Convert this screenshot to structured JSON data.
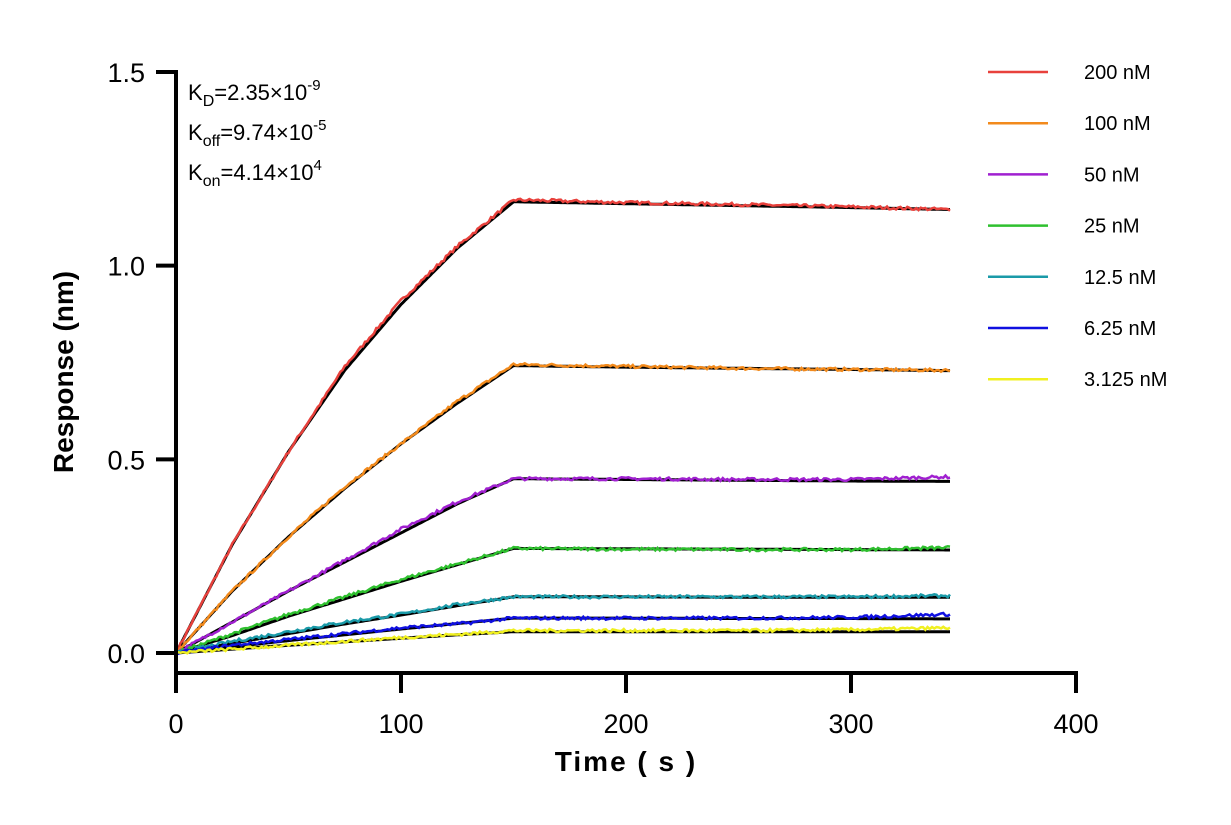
{
  "chart_data": {
    "type": "line",
    "xlabel": "Time ( s )",
    "ylabel": "Response (nm)",
    "xlim": [
      0,
      400
    ],
    "ylim": [
      0,
      1.5
    ],
    "xticks": [
      "0",
      "100",
      "200",
      "300",
      "400"
    ],
    "yticks": [
      "0.0",
      "0.5",
      "1.0",
      "1.5"
    ],
    "grid": false,
    "legend_position": "right",
    "annotations": {
      "kd": {
        "base": "K",
        "sub": "D",
        "value": "=2.35×10",
        "exp": "-9"
      },
      "koff": {
        "base": "K",
        "sub": "off",
        "value": "=9.74×10",
        "exp": "-5"
      },
      "kon": {
        "base": "K",
        "sub": "on",
        "value": "=4.14×10",
        "exp": "4"
      }
    },
    "fit_color": "#000000",
    "x": [
      0,
      25,
      50,
      75,
      100,
      125,
      150,
      200,
      250,
      300,
      344
    ],
    "series": [
      {
        "name": "200 nM",
        "color": "#e8413c",
        "values": [
          0,
          0.28,
          0.52,
          0.74,
          0.91,
          1.05,
          1.17,
          1.163,
          1.158,
          1.152,
          1.145
        ],
        "fit": [
          0,
          0.28,
          0.52,
          0.73,
          0.9,
          1.045,
          1.165,
          1.16,
          1.155,
          1.15,
          1.145
        ]
      },
      {
        "name": "100 nM",
        "color": "#f28a1c",
        "values": [
          0,
          0.16,
          0.3,
          0.43,
          0.54,
          0.65,
          0.745,
          0.74,
          0.735,
          0.732,
          0.73
        ],
        "fit": [
          0,
          0.16,
          0.3,
          0.425,
          0.54,
          0.645,
          0.742,
          0.738,
          0.735,
          0.732,
          0.729
        ]
      },
      {
        "name": "50 nM",
        "color": "#a020d0",
        "values": [
          0,
          0.08,
          0.16,
          0.24,
          0.32,
          0.39,
          0.45,
          0.45,
          0.448,
          0.448,
          0.455
        ],
        "fit": [
          0,
          0.08,
          0.16,
          0.235,
          0.31,
          0.385,
          0.45,
          0.448,
          0.446,
          0.444,
          0.443
        ]
      },
      {
        "name": "25 nM",
        "color": "#2fc02f",
        "values": [
          0,
          0.05,
          0.1,
          0.145,
          0.19,
          0.23,
          0.27,
          0.268,
          0.267,
          0.267,
          0.272
        ],
        "fit": [
          0,
          0.045,
          0.095,
          0.14,
          0.185,
          0.228,
          0.27,
          0.269,
          0.268,
          0.267,
          0.266
        ]
      },
      {
        "name": "12.5 nM",
        "color": "#1a9aa8",
        "values": [
          0,
          0.03,
          0.055,
          0.08,
          0.1,
          0.125,
          0.145,
          0.145,
          0.145,
          0.145,
          0.148
        ],
        "fit": [
          0,
          0.025,
          0.05,
          0.075,
          0.098,
          0.122,
          0.145,
          0.145,
          0.144,
          0.144,
          0.144
        ]
      },
      {
        "name": "6.25 nM",
        "color": "#1010e0",
        "values": [
          0,
          0.02,
          0.035,
          0.05,
          0.065,
          0.075,
          0.09,
          0.09,
          0.09,
          0.092,
          0.1
        ],
        "fit": [
          0,
          0.016,
          0.032,
          0.047,
          0.062,
          0.076,
          0.09,
          0.09,
          0.089,
          0.089,
          0.088
        ]
      },
      {
        "name": "3.125 nM",
        "color": "#f0f020",
        "values": [
          0,
          0.01,
          0.02,
          0.03,
          0.04,
          0.048,
          0.058,
          0.058,
          0.058,
          0.06,
          0.065
        ],
        "fit": [
          0,
          0.01,
          0.02,
          0.029,
          0.038,
          0.047,
          0.055,
          0.055,
          0.055,
          0.055,
          0.055
        ]
      }
    ]
  }
}
